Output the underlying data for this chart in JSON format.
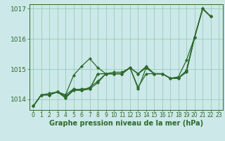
{
  "line_color": "#2d6a2d",
  "background_color": "#cce8e8",
  "grid_color": "#99ccbb",
  "ylim": [
    1013.65,
    1017.15
  ],
  "yticks": [
    1014,
    1015,
    1016,
    1017
  ],
  "xlim": [
    -0.5,
    23.5
  ],
  "xticks": [
    0,
    1,
    2,
    3,
    4,
    5,
    6,
    7,
    8,
    9,
    10,
    11,
    12,
    13,
    14,
    15,
    16,
    17,
    18,
    19,
    20,
    21,
    22,
    23
  ],
  "xlabel": "Graphe pression niveau de la mer (hPa)",
  "marker": "D",
  "markersize": 2.2,
  "linewidth": 0.9,
  "xlabel_fontsize": 7.0,
  "ytick_fontsize": 6.5,
  "xtick_fontsize": 5.5,
  "lines": [
    {
      "x": [
        0,
        1,
        2,
        3,
        4,
        5,
        6,
        7,
        8,
        9,
        10,
        11,
        12,
        13,
        14,
        15,
        16,
        17,
        18,
        19,
        20,
        21,
        22
      ],
      "y": [
        1013.78,
        1014.15,
        1014.15,
        1014.25,
        1014.15,
        1014.8,
        1015.1,
        1015.35,
        1015.05,
        1014.85,
        1014.9,
        1014.9,
        1015.05,
        1014.85,
        1015.05,
        1014.85,
        1014.85,
        1014.7,
        1014.75,
        1015.3,
        1016.05,
        1017.0,
        1016.75
      ]
    },
    {
      "x": [
        0,
        1,
        2,
        3,
        4,
        5,
        6,
        7,
        8,
        9,
        10,
        11,
        12,
        13,
        14,
        15,
        16,
        17,
        18,
        19,
        20,
        21,
        22
      ],
      "y": [
        1013.78,
        1014.15,
        1014.15,
        1014.25,
        1014.05,
        1014.3,
        1014.35,
        1014.35,
        1014.55,
        1014.85,
        1014.85,
        1014.85,
        1015.05,
        1014.85,
        1015.05,
        1014.85,
        1014.85,
        1014.7,
        1014.7,
        1014.9,
        1016.05,
        1017.0,
        1016.75
      ]
    },
    {
      "x": [
        0,
        1,
        2,
        3,
        4,
        5,
        6,
        7,
        8,
        9,
        10,
        11,
        12,
        13,
        14,
        15,
        16,
        17,
        18,
        19,
        20,
        21,
        22
      ],
      "y": [
        1013.78,
        1014.15,
        1014.15,
        1014.25,
        1014.1,
        1014.3,
        1014.3,
        1014.4,
        1014.6,
        1014.85,
        1014.85,
        1014.85,
        1015.05,
        1014.85,
        1015.1,
        1014.85,
        1014.85,
        1014.7,
        1014.7,
        1014.95,
        1016.05,
        1017.0,
        1016.75
      ]
    },
    {
      "x": [
        0,
        1,
        2,
        3,
        4,
        5,
        6,
        7,
        8,
        9,
        10,
        11,
        12,
        13,
        14,
        15,
        16,
        17,
        18,
        19,
        20,
        21,
        22
      ],
      "y": [
        1013.78,
        1014.15,
        1014.15,
        1014.25,
        1014.15,
        1014.35,
        1014.3,
        1014.35,
        1014.85,
        1014.85,
        1014.85,
        1014.85,
        1015.05,
        1014.35,
        1015.05,
        1014.85,
        1014.85,
        1014.7,
        1014.7,
        1014.95,
        1016.05,
        1017.0,
        1016.75
      ]
    },
    {
      "x": [
        0,
        1,
        2,
        3,
        4,
        5,
        6,
        7,
        8,
        9,
        10,
        11,
        12,
        13,
        14,
        15,
        16,
        17,
        18,
        19,
        20,
        21,
        22
      ],
      "y": [
        1013.78,
        1014.15,
        1014.2,
        1014.25,
        1014.05,
        1014.35,
        1014.3,
        1014.35,
        1014.85,
        1014.85,
        1014.85,
        1014.85,
        1015.05,
        1014.4,
        1014.85,
        1014.85,
        1014.85,
        1014.7,
        1014.7,
        1014.95,
        1016.05,
        1017.0,
        1016.75
      ]
    }
  ]
}
